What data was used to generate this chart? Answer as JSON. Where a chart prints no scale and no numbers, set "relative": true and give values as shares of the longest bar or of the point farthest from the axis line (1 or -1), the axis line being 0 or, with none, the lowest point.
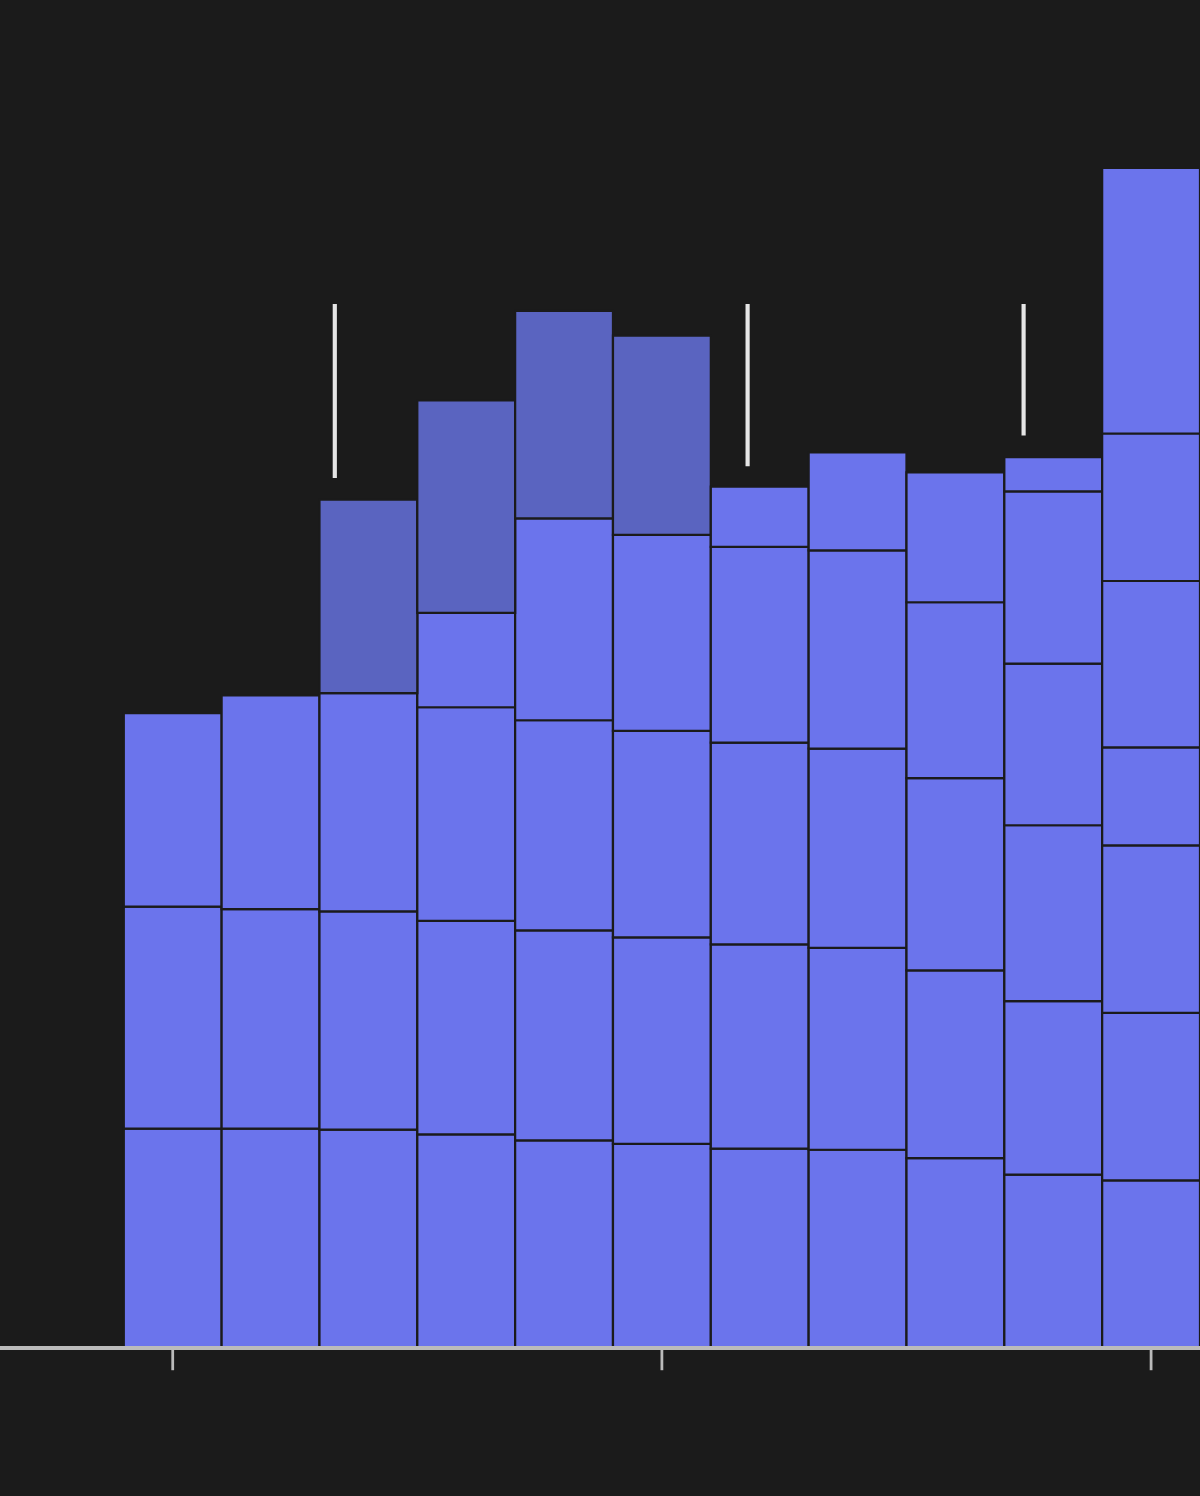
{
  "chart_data": {
    "type": "bar",
    "stacked": true,
    "relative": true,
    "grid": false,
    "legend": false,
    "categories": [
      null,
      null,
      null,
      null,
      null,
      null,
      null,
      null,
      null,
      null,
      null
    ],
    "series": [
      {
        "color": "#6b74ec",
        "values": [
          0.186,
          0.186,
          0.185,
          0.181,
          0.176,
          0.173,
          0.169,
          0.168,
          0.161,
          0.147,
          0.142
        ]
      },
      {
        "color": "#6b74ec",
        "values": [
          0.188,
          0.186,
          0.185,
          0.181,
          0.178,
          0.175,
          0.173,
          0.171,
          0.159,
          0.147,
          0.142
        ]
      },
      {
        "color": "#6b74ec",
        "values": [
          0.164,
          0.181,
          0.185,
          0.181,
          0.178,
          0.175,
          0.171,
          0.169,
          0.163,
          0.149,
          0.142
        ]
      },
      {
        "color": "#6b74ec",
        "values": [
          null,
          null,
          null,
          0.08,
          0.171,
          0.166,
          0.166,
          0.168,
          0.149,
          0.137,
          0.083
        ]
      },
      {
        "color": "#5a64c0",
        "values": [
          null,
          null,
          0.164,
          0.18,
          0.176,
          0.169,
          null,
          null,
          null,
          null,
          null
        ]
      },
      {
        "color": "#6b74ec",
        "values": [
          null,
          null,
          null,
          null,
          null,
          null,
          0.051,
          0.083,
          0.11,
          0.146,
          0.141
        ]
      },
      {
        "color": "#6b74ec",
        "values": [
          null,
          null,
          null,
          null,
          null,
          null,
          null,
          null,
          null,
          0.029,
          0.125
        ]
      },
      {
        "color": "#6b74ec",
        "values": [
          null,
          null,
          null,
          null,
          null,
          null,
          null,
          null,
          null,
          null,
          0.225
        ]
      }
    ]
  }
}
